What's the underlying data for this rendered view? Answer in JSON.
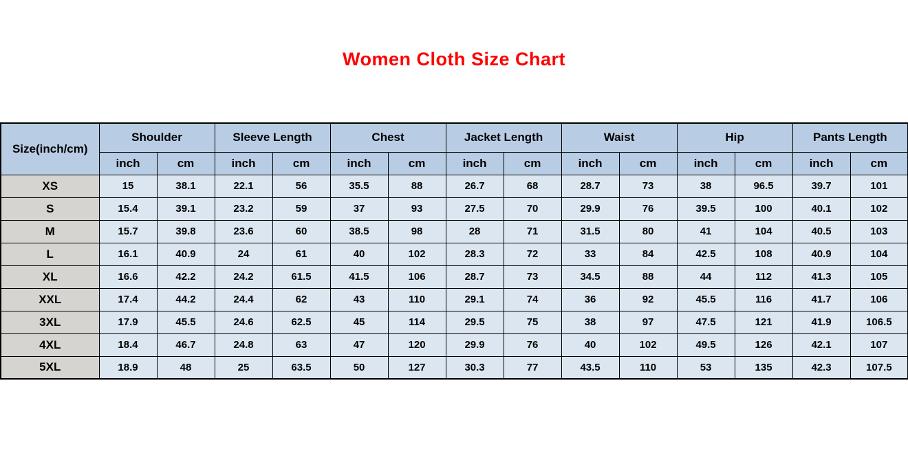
{
  "title": "Women Cloth Size Chart",
  "colors": {
    "title": "#ff0000",
    "header_bg": "#b8cce4",
    "row_bg": "#dce6f1",
    "size_col_bg": "#d6d4d0",
    "border": "#000000"
  },
  "chart_data": {
    "type": "table",
    "title": "Women Cloth Size Chart",
    "corner_header": "Size(inch/cm)",
    "groups": [
      "Shoulder",
      "Sleeve Length",
      "Chest",
      "Jacket Length",
      "Waist",
      "Hip",
      "Pants Length"
    ],
    "units": [
      "inch",
      "cm"
    ],
    "rows": [
      {
        "size": "XS",
        "values": [
          "15",
          "38.1",
          "22.1",
          "56",
          "35.5",
          "88",
          "26.7",
          "68",
          "28.7",
          "73",
          "38",
          "96.5",
          "39.7",
          "101"
        ]
      },
      {
        "size": "S",
        "values": [
          "15.4",
          "39.1",
          "23.2",
          "59",
          "37",
          "93",
          "27.5",
          "70",
          "29.9",
          "76",
          "39.5",
          "100",
          "40.1",
          "102"
        ]
      },
      {
        "size": "M",
        "values": [
          "15.7",
          "39.8",
          "23.6",
          "60",
          "38.5",
          "98",
          "28",
          "71",
          "31.5",
          "80",
          "41",
          "104",
          "40.5",
          "103"
        ]
      },
      {
        "size": "L",
        "values": [
          "16.1",
          "40.9",
          "24",
          "61",
          "40",
          "102",
          "28.3",
          "72",
          "33",
          "84",
          "42.5",
          "108",
          "40.9",
          "104"
        ]
      },
      {
        "size": "XL",
        "values": [
          "16.6",
          "42.2",
          "24.2",
          "61.5",
          "41.5",
          "106",
          "28.7",
          "73",
          "34.5",
          "88",
          "44",
          "112",
          "41.3",
          "105"
        ]
      },
      {
        "size": "XXL",
        "values": [
          "17.4",
          "44.2",
          "24.4",
          "62",
          "43",
          "110",
          "29.1",
          "74",
          "36",
          "92",
          "45.5",
          "116",
          "41.7",
          "106"
        ]
      },
      {
        "size": "3XL",
        "values": [
          "17.9",
          "45.5",
          "24.6",
          "62.5",
          "45",
          "114",
          "29.5",
          "75",
          "38",
          "97",
          "47.5",
          "121",
          "41.9",
          "106.5"
        ]
      },
      {
        "size": "4XL",
        "values": [
          "18.4",
          "46.7",
          "24.8",
          "63",
          "47",
          "120",
          "29.9",
          "76",
          "40",
          "102",
          "49.5",
          "126",
          "42.1",
          "107"
        ]
      },
      {
        "size": "5XL",
        "values": [
          "18.9",
          "48",
          "25",
          "63.5",
          "50",
          "127",
          "30.3",
          "77",
          "43.5",
          "110",
          "53",
          "135",
          "42.3",
          "107.5"
        ]
      }
    ]
  }
}
